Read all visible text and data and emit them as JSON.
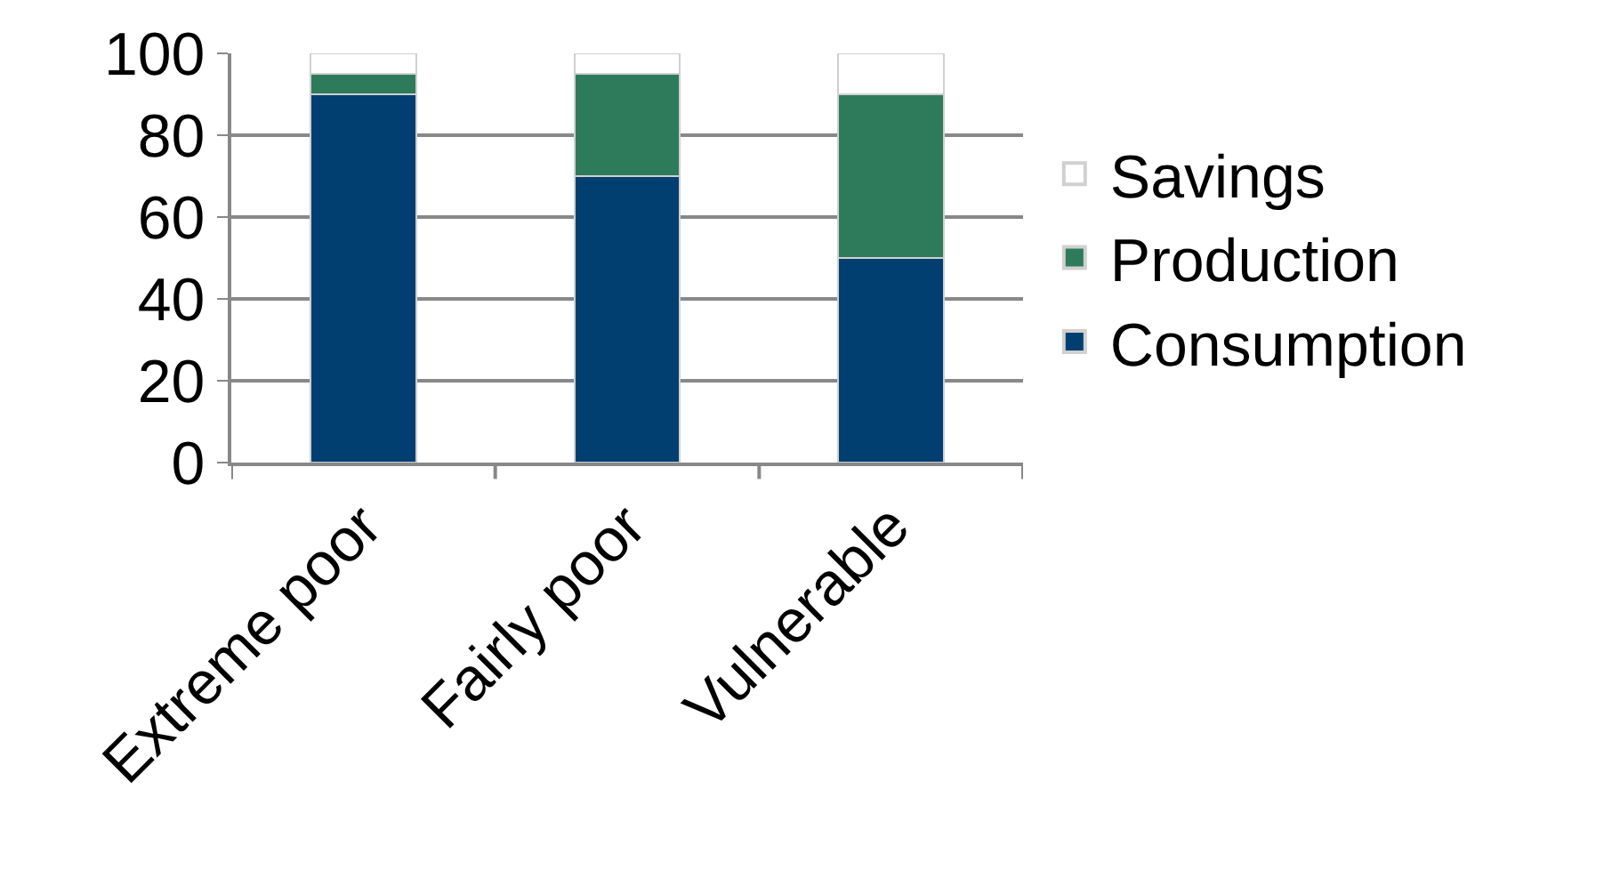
{
  "chart_data": {
    "type": "bar",
    "stacked": true,
    "categories": [
      "Extreme poor",
      "Fairly poor",
      "Vulnerable"
    ],
    "series": [
      {
        "name": "Consumption",
        "color": "#003f6f",
        "values": [
          90,
          70,
          50
        ]
      },
      {
        "name": "Production",
        "color": "#2e7b5c",
        "values": [
          5,
          25,
          40
        ]
      },
      {
        "name": "Savings",
        "color": "#ffffff",
        "values": [
          5,
          5,
          10
        ]
      }
    ],
    "ylim": [
      0,
      100
    ],
    "yticks": [
      0,
      20,
      40,
      60,
      80,
      100
    ],
    "grid": "y",
    "legend": "right"
  }
}
